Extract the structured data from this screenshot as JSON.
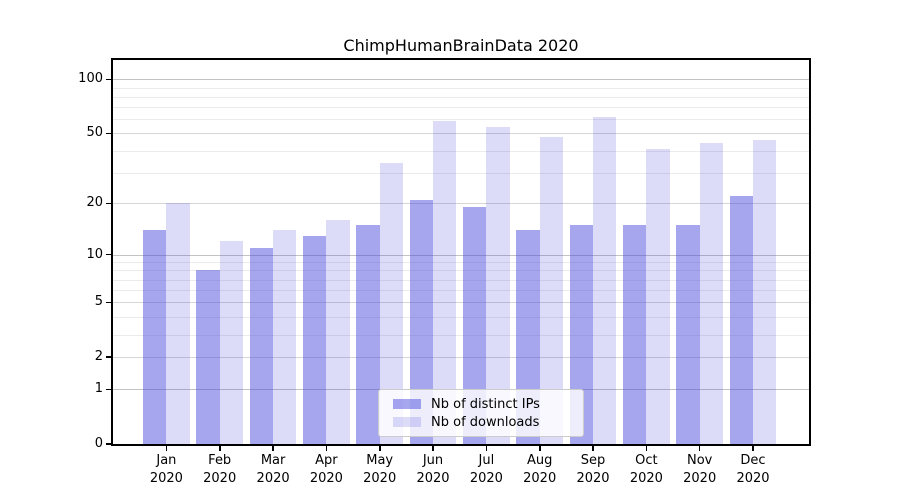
{
  "title": "ChimpHumanBrainData 2020",
  "chart_data": {
    "type": "bar",
    "title": "ChimpHumanBrainData 2020",
    "categories": [
      "Jan",
      "Feb",
      "Mar",
      "Apr",
      "May",
      "Jun",
      "Jul",
      "Aug",
      "Sep",
      "Oct",
      "Nov",
      "Dec"
    ],
    "year_label": "2020",
    "series": [
      {
        "name": "Nb of distinct IPs",
        "color": "rgba(68,68,221,0.48)",
        "values": [
          14,
          8,
          11,
          13,
          15,
          21,
          19,
          14,
          15,
          15,
          15,
          22
        ]
      },
      {
        "name": "Nb of downloads",
        "color": "rgba(68,68,221,0.19)",
        "values": [
          20,
          12,
          14,
          16,
          34,
          59,
          54,
          48,
          62,
          41,
          44,
          46
        ]
      }
    ],
    "yscale": "log1p",
    "ylim": [
      0,
      128
    ],
    "ylim_top": 128,
    "y_ticks_labeled": [
      0,
      1,
      2,
      5,
      10,
      20,
      50,
      100
    ],
    "y_ticks_minor": [
      3,
      4,
      6,
      7,
      8,
      9,
      30,
      40,
      60,
      70,
      80,
      90
    ],
    "y_ticks_major": [
      1,
      10,
      100
    ],
    "grid": true,
    "legend_position": "lower center",
    "axis_color": "#000000",
    "grid_minor_color": "#ebebeb",
    "grid_major_color": "#c3c3c3"
  }
}
